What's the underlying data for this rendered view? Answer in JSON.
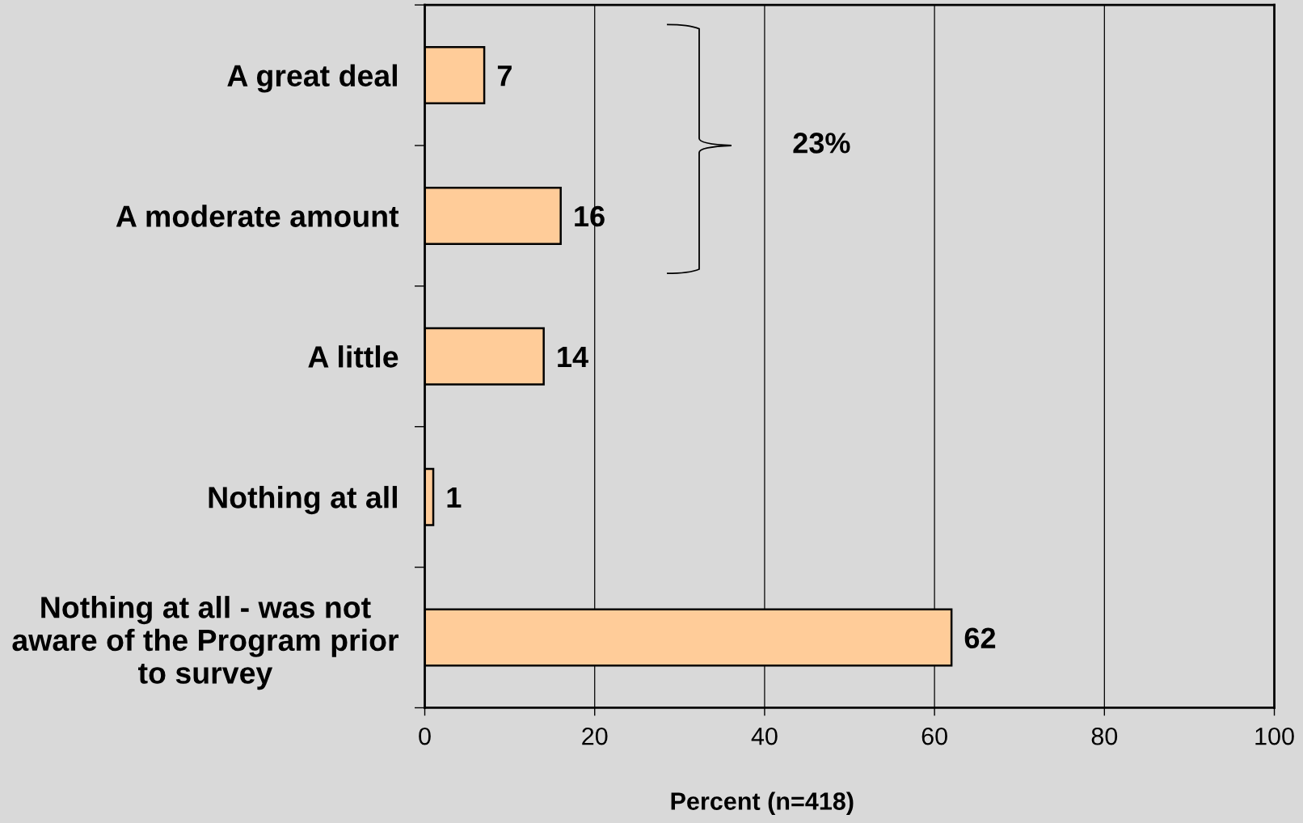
{
  "chart_data": {
    "type": "bar",
    "orientation": "horizontal",
    "categories": [
      "A great deal",
      "A moderate amount",
      "A little",
      "Nothing at all",
      "Nothing at all - was not\naware of the Program prior\nto survey"
    ],
    "values": [
      7,
      16,
      14,
      1,
      62
    ],
    "color": "#ffcc99",
    "xlabel": "Percent (n=418)",
    "xlim": [
      0,
      100
    ],
    "xticks": [
      0,
      20,
      40,
      60,
      80,
      100
    ],
    "grid": "x",
    "data_labels": true,
    "annotations": [
      "23%"
    ]
  }
}
